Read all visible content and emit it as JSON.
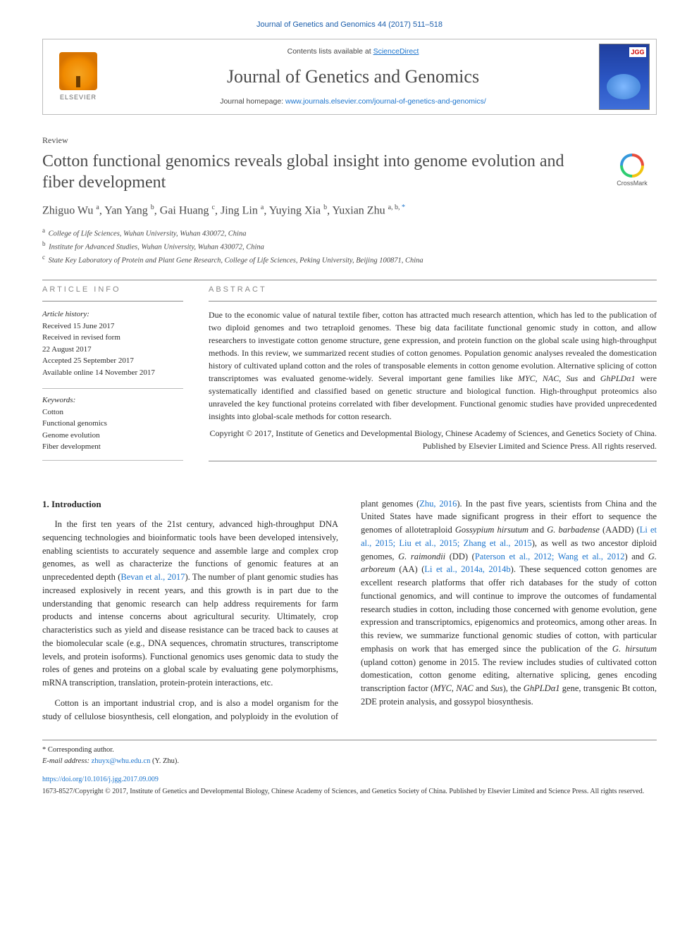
{
  "journal_ref": "Journal of Genetics and Genomics 44 (2017) 511–518",
  "banner": {
    "contents_prefix": "Contents lists available at ",
    "contents_link": "ScienceDirect",
    "journal_name": "Journal of Genetics and Genomics",
    "homepage_prefix": "Journal homepage: ",
    "homepage_url": "www.journals.elsevier.com/journal-of-genetics-and-genomics/",
    "elsevier_label": "ELSEVIER",
    "cover_badge": "JGG"
  },
  "article_type": "Review",
  "title": "Cotton functional genomics reveals global insight into genome evolution and fiber development",
  "crossmark_label": "CrossMark",
  "authors_html": "Zhiguo Wu <sup>a</sup>, Yan Yang <sup>b</sup>, Gai Huang <sup>c</sup>, Jing Lin <sup>a</sup>, Yuying Xia <sup>b</sup>, Yuxian Zhu <sup>a, b, <span class='corr'>*</span></sup>",
  "affiliations": {
    "a": "College of Life Sciences, Wuhan University, Wuhan 430072, China",
    "b": "Institute for Advanced Studies, Wuhan University, Wuhan 430072, China",
    "c": "State Key Laboratory of Protein and Plant Gene Research, College of Life Sciences, Peking University, Beijing 100871, China"
  },
  "info": {
    "heading": "article info",
    "history_label": "Article history:",
    "history": [
      "Received 15 June 2017",
      "Received in revised form",
      "22 August 2017",
      "Accepted 25 September 2017",
      "Available online 14 November 2017"
    ],
    "keywords_label": "Keywords:",
    "keywords": [
      "Cotton",
      "Functional genomics",
      "Genome evolution",
      "Fiber development"
    ]
  },
  "abstract": {
    "heading": "abstract",
    "text": "Due to the economic value of natural textile fiber, cotton has attracted much research attention, which has led to the publication of two diploid genomes and two tetraploid genomes. These big data facilitate functional genomic study in cotton, and allow researchers to investigate cotton genome structure, gene expression, and protein function on the global scale using high-throughput methods. In this review, we summarized recent studies of cotton genomes. Population genomic analyses revealed the domestication history of cultivated upland cotton and the roles of transposable elements in cotton genome evolution. Alternative splicing of cotton transcriptomes was evaluated genome-widely. Several important gene families like MYC, NAC, Sus and GhPLDα1 were systematically identified and classified based on genetic structure and biological function. High-throughput proteomics also unraveled the key functional proteins correlated with fiber development. Functional genomic studies have provided unprecedented insights into global-scale methods for cotton research.",
    "copyright": "Copyright © 2017, Institute of Genetics and Developmental Biology, Chinese Academy of Sciences, and Genetics Society of China. Published by Elsevier Limited and Science Press. All rights reserved."
  },
  "section1": {
    "heading": "1. Introduction",
    "p1_a": "In the first ten years of the 21st century, advanced high-throughput DNA sequencing technologies and bioinformatic tools have been developed intensively, enabling scientists to accurately sequence and assemble large and complex crop genomes, as well as characterize the functions of genomic features at an unprecedented depth (",
    "p1_ref1": "Bevan et al., 2017",
    "p1_b": "). The number of plant genomic studies has increased explosively in recent years, and this growth is in part due to the understanding that genomic research can help address requirements for farm products and intense concerns about agricultural security. Ultimately, crop characteristics such as yield and disease resistance can be traced back to causes at the biomolecular scale (e.g., DNA sequences, chromatin structures, transcriptome levels, and protein isoforms). Functional genomics uses genomic data to study the roles of genes and proteins on a global scale by evaluating gene polymorphisms, mRNA transcription, translation, protein-protein interactions, etc.",
    "p2_a": "Cotton is an important industrial crop, and is also a model ",
    "p2_b": "organism for the study of cellulose biosynthesis, cell elongation, and polyploidy in the evolution of plant genomes (",
    "p2_ref1": "Zhu, 2016",
    "p2_c": "). In the past five years, scientists from China and the United States have made significant progress in their effort to sequence the genomes of allotetraploid ",
    "p2_it1": "Gossypium hirsutum",
    "p2_d": " and ",
    "p2_it2": "G. barbadense",
    "p2_e": " (AADD) (",
    "p2_ref2": "Li et al., 2015; Liu et al., 2015; Zhang et al., 2015",
    "p2_f": "), as well as two ancestor diploid genomes, ",
    "p2_it3": "G. raimondii",
    "p2_g": " (DD) (",
    "p2_ref3": "Paterson et al., 2012; Wang et al., 2012",
    "p2_h": ") and ",
    "p2_it4": "G. arboreum",
    "p2_i": " (AA) (",
    "p2_ref4": "Li et al., 2014a, 2014b",
    "p2_j": "). These sequenced cotton genomes are excellent research platforms that offer rich databases for the study of cotton functional genomics, and will continue to improve the outcomes of fundamental research studies in cotton, including those concerned with genome evolution, gene expression and transcriptomics, epigenomics and proteomics, among other areas. In this review, we summarize functional genomic studies of cotton, with particular emphasis on work that has emerged since the publication of the ",
    "p2_it5": "G. hirsutum",
    "p2_k": " (upland cotton) genome in 2015. The review includes studies of cultivated cotton domestication, cotton genome editing, alternative splicing, genes encoding transcription factor (",
    "p2_it6": "MYC, NAC",
    "p2_l": " and ",
    "p2_it7": "Sus",
    "p2_m": "), the ",
    "p2_it8": "GhPLDα1",
    "p2_n": " gene, transgenic Bt cotton, 2DE protein analysis, and gossypol biosynthesis."
  },
  "footer": {
    "corr_label": "* Corresponding author.",
    "email_label": "E-mail address:",
    "email": "zhuyx@whu.edu.cn",
    "email_name": "(Y. Zhu).",
    "doi": "https://doi.org/10.1016/j.jgg.2017.09.009",
    "issn_line": "1673-8527/Copyright © 2017, Institute of Genetics and Developmental Biology, Chinese Academy of Sciences, and Genetics Society of China. Published by Elsevier Limited and Science Press. All rights reserved."
  },
  "colors": {
    "link": "#1a73cc",
    "heading_gray": "#4a4a4a",
    "rule": "#888888"
  }
}
